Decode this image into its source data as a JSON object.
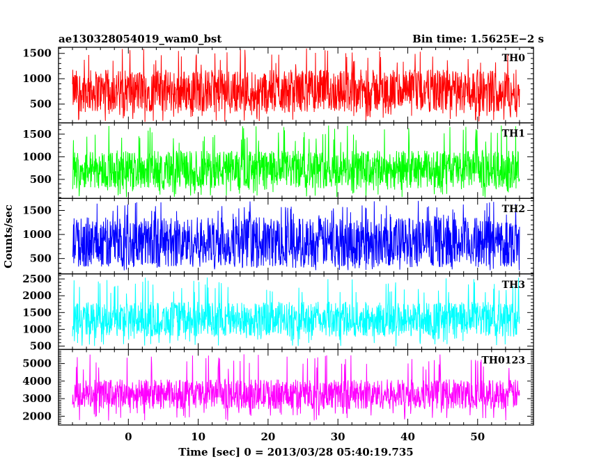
{
  "header": {
    "obs_id": "ae130328054019_wam0_bst",
    "bin_time": "Bin time: 1.5625E−2 s"
  },
  "axes": {
    "xlabel": "Time [sec] 0 = 2013/03/28 05:40:19.735",
    "ylabel": "Counts/sec"
  },
  "chart_data": {
    "type": "line",
    "title": "ae130328054019_wam0_bst",
    "subtitle": "Bin time: 1.5625E−2 s",
    "xlabel": "Time [sec] 0 = 2013/03/28 05:40:19.735",
    "ylabel": "Counts/sec",
    "xlim": [
      -10,
      58
    ],
    "x_range_data": [
      -8,
      56
    ],
    "x_ticks": [
      0,
      10,
      20,
      30,
      40,
      50
    ],
    "grid": false,
    "panels": [
      {
        "name": "TH0",
        "color": "#ff0000",
        "ylim": [
          130,
          1620
        ],
        "y_ticks": [
          500,
          1000,
          1500
        ],
        "baseline": 760,
        "noise_amplitude": 420,
        "peak_max": 1600,
        "trough_min": 150
      },
      {
        "name": "TH1",
        "color": "#00ff00",
        "ylim": [
          80,
          1750
        ],
        "y_ticks": [
          500,
          1000,
          1500
        ],
        "baseline": 720,
        "noise_amplitude": 420,
        "peak_max": 1700,
        "trough_min": 100
      },
      {
        "name": "TH2",
        "color": "#0000ff",
        "ylim": [
          180,
          1750
        ],
        "y_ticks": [
          500,
          1000,
          1500
        ],
        "baseline": 840,
        "noise_amplitude": 520,
        "peak_max": 1700,
        "trough_min": 250
      },
      {
        "name": "TH3",
        "color": "#00ffff",
        "ylim": [
          400,
          2650
        ],
        "y_ticks": [
          500,
          1000,
          1500,
          2000,
          2500
        ],
        "baseline": 1300,
        "noise_amplitude": 520,
        "peak_max": 2550,
        "trough_min": 500
      },
      {
        "name": "TH0123",
        "color": "#ff00ff",
        "ylim": [
          1500,
          5800
        ],
        "y_ticks": [
          2000,
          3000,
          4000,
          5000
        ],
        "baseline": 3250,
        "noise_amplitude": 850,
        "peak_max": 5550,
        "trough_min": 1750
      }
    ]
  }
}
